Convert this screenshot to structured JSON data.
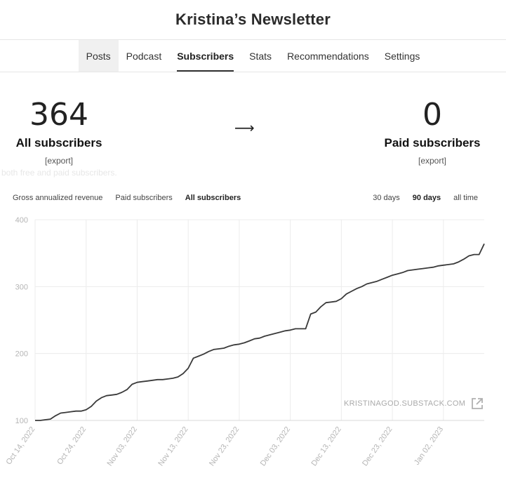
{
  "header": {
    "title": "Kristina’s Newsletter"
  },
  "nav": {
    "tabs": [
      {
        "label": "Posts"
      },
      {
        "label": "Podcast"
      },
      {
        "label": "Subscribers"
      },
      {
        "label": "Stats"
      },
      {
        "label": "Recommendations"
      },
      {
        "label": "Settings"
      }
    ],
    "active_tab": "Subscribers"
  },
  "stats": {
    "all": {
      "value": "364",
      "label": "All subscribers",
      "export": "[export]"
    },
    "paid": {
      "value": "0",
      "label": "Paid subscribers",
      "export": "[export]"
    },
    "arrow": "⟶",
    "ghost_text": "both free and paid subscribers."
  },
  "filters": {
    "metrics": [
      "Gross annualized revenue",
      "Paid subscribers",
      "All subscribers"
    ],
    "active_metric": "All subscribers",
    "ranges": [
      "30 days",
      "90 days",
      "all time"
    ],
    "active_range": "90 days"
  },
  "watermark": "KRISTINAGOD.SUBSTACK.COM",
  "colors": {
    "line": "#3a3a3a",
    "grid": "#ececec",
    "axis_text": "#b5b5b5"
  },
  "chart_data": {
    "type": "line",
    "ylim": [
      100,
      400
    ],
    "yticks": [
      100,
      200,
      300,
      400
    ],
    "xticks": [
      "Oct 14, 2022",
      "Oct 24, 2022",
      "Nov 03, 2022",
      "Nov 13, 2022",
      "Nov 23, 2022",
      "Dec 03, 2022",
      "Dec 13, 2022",
      "Dec 23, 2022",
      "Jan 02, 2023"
    ],
    "x_start": "Oct 14, 2022",
    "series": [
      {
        "values": [
          100,
          100,
          101,
          102,
          107,
          111,
          112,
          113,
          114,
          114,
          116,
          121,
          129,
          134,
          137,
          138,
          139,
          142,
          146,
          154,
          157,
          158,
          159,
          160,
          161,
          161,
          162,
          163,
          165,
          170,
          178,
          193,
          196,
          199,
          203,
          206,
          207,
          208,
          211,
          213,
          214,
          216,
          219,
          222,
          223,
          226,
          228,
          230,
          232,
          234,
          235,
          237,
          237,
          237,
          259,
          262,
          270,
          276,
          277,
          278,
          282,
          289,
          293,
          297,
          300,
          304,
          306,
          308,
          311,
          314,
          317,
          319,
          321,
          324,
          325,
          326,
          327,
          328,
          329,
          331,
          332,
          333,
          334,
          337,
          341,
          346,
          348,
          348,
          364
        ]
      }
    ]
  }
}
